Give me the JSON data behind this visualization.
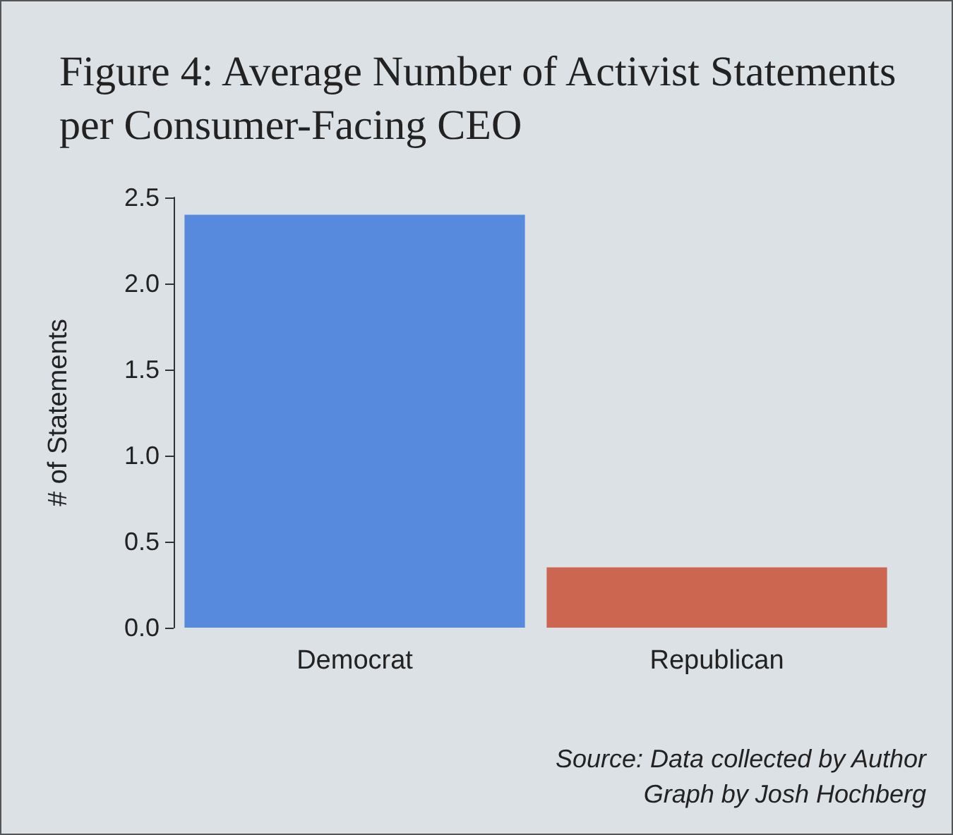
{
  "chart_data": {
    "type": "bar",
    "title": "Figure 4: Average Number of Activist Statements per Consumer-Facing CEO",
    "ylabel": "# of Statements",
    "categories": [
      "Democrat",
      "Republican"
    ],
    "values": [
      2.4,
      0.35
    ],
    "colors": [
      "#5789dd",
      "#cc6651"
    ],
    "ylim": [
      0,
      2.5
    ],
    "yticks": [
      {
        "value": 0,
        "label": "0.0"
      },
      0.5,
      {
        "value": 1,
        "label": "1.0"
      },
      1.5,
      {
        "value": 2,
        "label": "2.0"
      },
      2.5
    ],
    "annotations": [
      "Source: Data collected by Author",
      "Graph by Josh Hochberg"
    ]
  }
}
